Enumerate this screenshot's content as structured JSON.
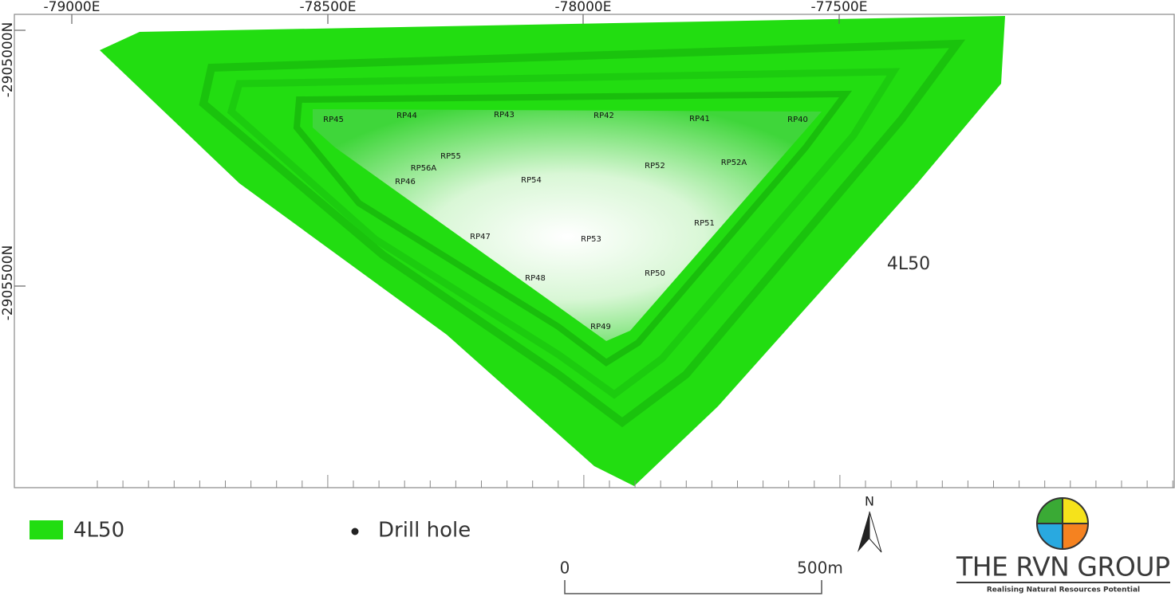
{
  "map": {
    "axis_labels": {
      "top": [
        "-79000E",
        "-78500E",
        "-78000E",
        "-77500E"
      ],
      "left": [
        "-2905000N",
        "-2905500N"
      ]
    },
    "pit_label": "4L50",
    "drill_holes": [
      "RP45",
      "RP44",
      "RP43",
      "RP42",
      "RP41",
      "RP40",
      "RP55",
      "RP56A",
      "RP46",
      "RP54",
      "RP52",
      "RP52A",
      "RP47",
      "RP53",
      "RP51",
      "RP48",
      "RP50",
      "RP49"
    ],
    "legend": {
      "pit": "4L50",
      "drill_hole": "Drill hole"
    },
    "scale_bar": {
      "start": "0",
      "end": "500m"
    },
    "north": "N",
    "logo": {
      "name": "THE RVN GROUP",
      "tagline": "Realising Natural Resources Potential"
    }
  }
}
